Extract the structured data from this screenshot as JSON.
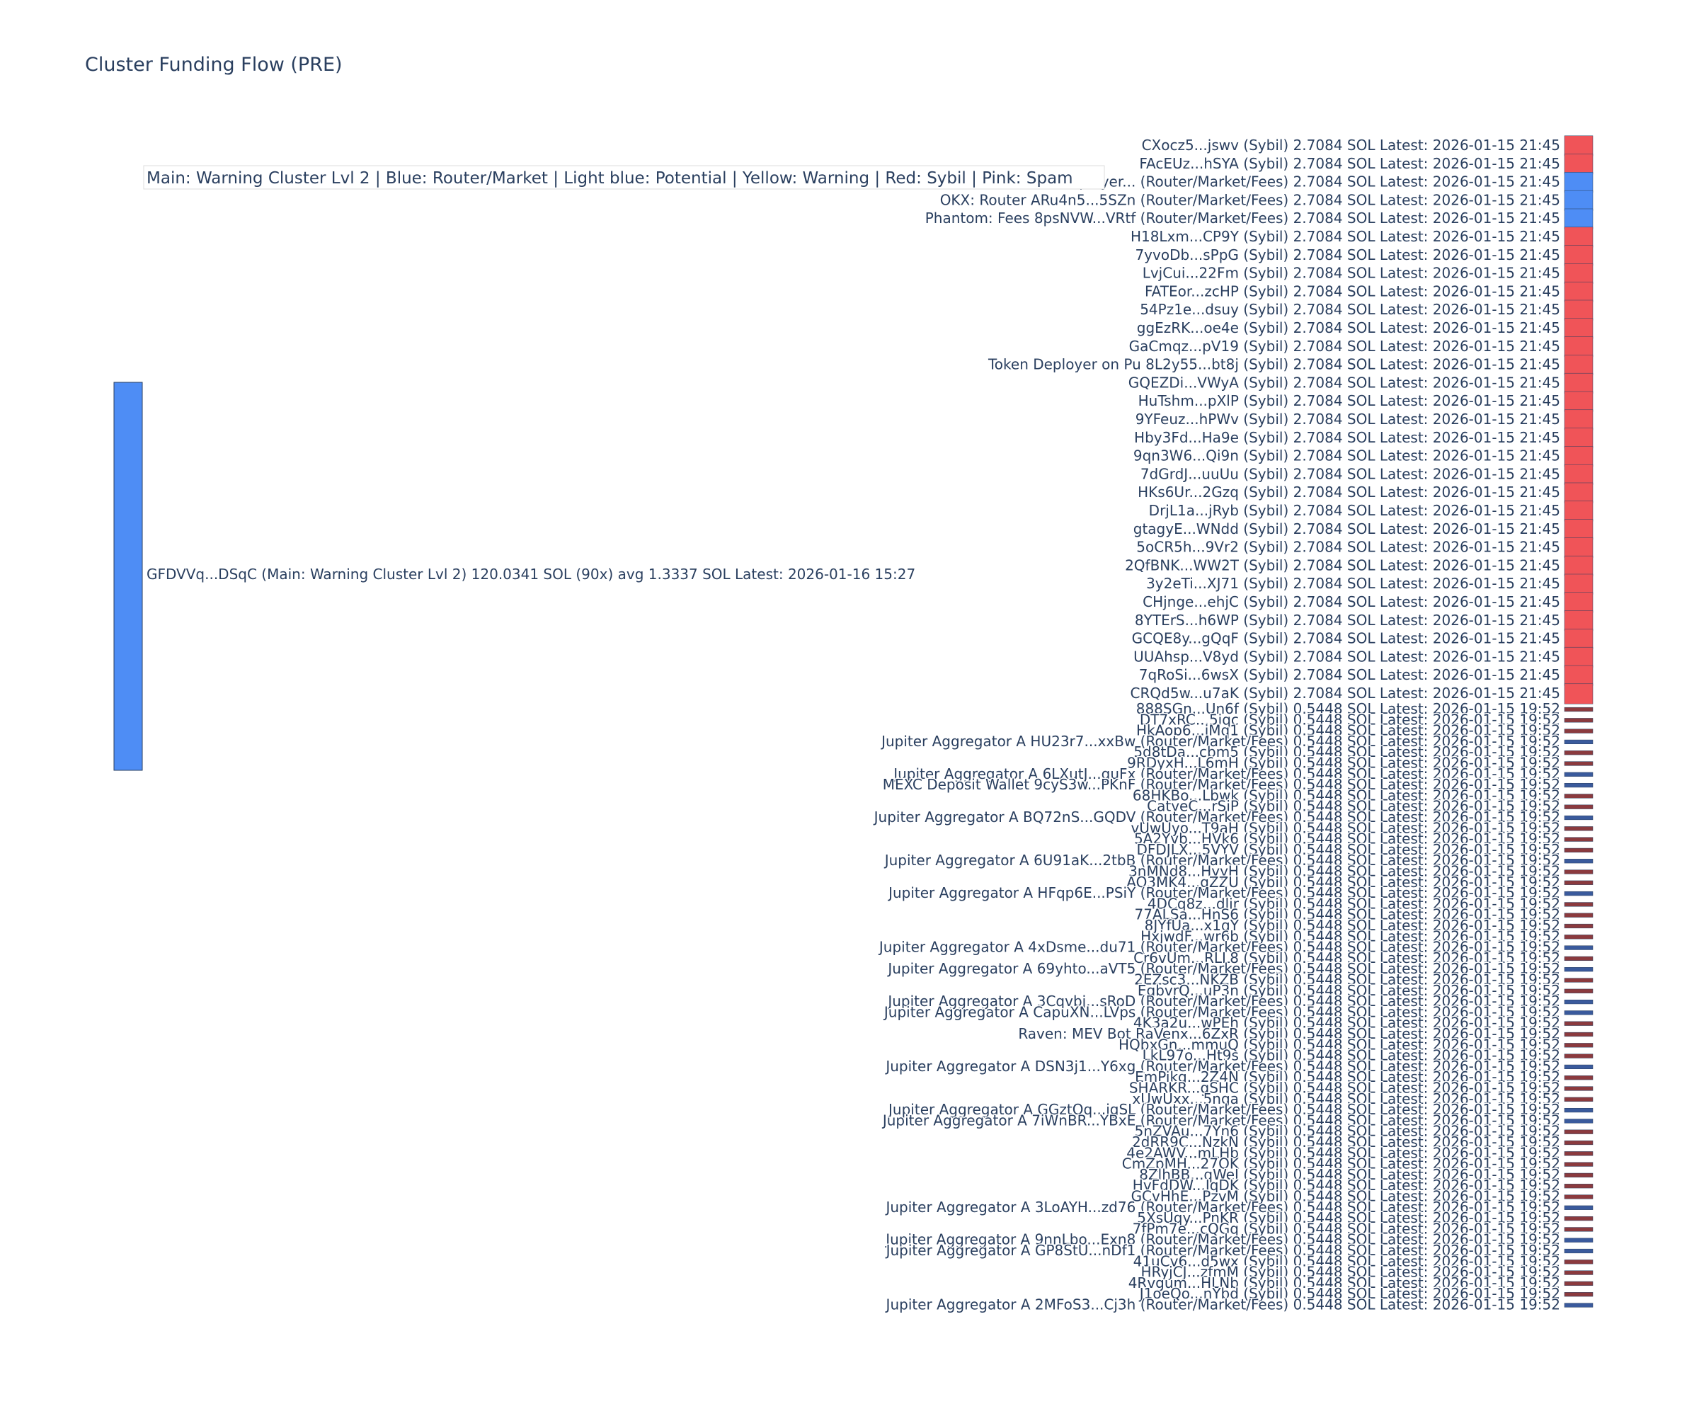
{
  "title": "Cluster Funding Flow (PRE)",
  "legend_text": "Main: Warning Cluster Lvl 2  |  Blue: Router/Market | Light blue: Potential | Yellow: Warning | Red: Sybil | Pink: Spam",
  "colors": {
    "sybil_link": "#f05458",
    "router_link": "#4e8df5",
    "sybil_node_large": "#f05458",
    "router_node_large": "#4e8df5",
    "sybil_node_small": "#8b3a3e",
    "router_node_small": "#3a5a9c",
    "source_node": "#4e8df5",
    "source_node_border": "#2a3f5f"
  },
  "chart_data": {
    "type": "sankey",
    "title": "Cluster Funding Flow (PRE)",
    "source": {
      "label": "GFDVVq...DSqC (Main: Warning Cluster Lvl 2) 120.0341 SOL (90x) avg 1.3337 SOL Latest: 2026-01-16 15:27",
      "total_sol": 120.0341,
      "count": 90,
      "avg_sol": 1.3337
    },
    "targets": [
      {
        "label": "CXocz5...jswv (Sybil) 2.7084 SOL Latest: 2026-01-15 21:45",
        "value": 2.7084,
        "kind": "sybil"
      },
      {
        "label": "FAcEUz...hSYA (Sybil) 2.7084 SOL Latest: 2026-01-15 21:45",
        "value": 2.7084,
        "kind": "sybil"
      },
      {
        "label": "Token Deployer... (Router/Market/Fees) 2.7084 SOL Latest: 2026-01-15 21:45",
        "value": 2.7084,
        "kind": "router"
      },
      {
        "label": "OKX: Router ARu4n5...5SZn (Router/Market/Fees) 2.7084 SOL Latest: 2026-01-15 21:45",
        "value": 2.7084,
        "kind": "router"
      },
      {
        "label": "Phantom: Fees 8psNVW...VRtf (Router/Market/Fees) 2.7084 SOL Latest: 2026-01-15 21:45",
        "value": 2.7084,
        "kind": "router"
      },
      {
        "label": "H18Lxm...CP9Y (Sybil) 2.7084 SOL Latest: 2026-01-15 21:45",
        "value": 2.7084,
        "kind": "sybil"
      },
      {
        "label": "7yvoDb...sPpG (Sybil) 2.7084 SOL Latest: 2026-01-15 21:45",
        "value": 2.7084,
        "kind": "sybil"
      },
      {
        "label": "LvjCui...22Fm (Sybil) 2.7084 SOL Latest: 2026-01-15 21:45",
        "value": 2.7084,
        "kind": "sybil"
      },
      {
        "label": "FATEor...zcHP (Sybil) 2.7084 SOL Latest: 2026-01-15 21:45",
        "value": 2.7084,
        "kind": "sybil"
      },
      {
        "label": "54Pz1e...dsuy (Sybil) 2.7084 SOL Latest: 2026-01-15 21:45",
        "value": 2.7084,
        "kind": "sybil"
      },
      {
        "label": "ggEzRK...oe4e (Sybil) 2.7084 SOL Latest: 2026-01-15 21:45",
        "value": 2.7084,
        "kind": "sybil"
      },
      {
        "label": "GaCmqz...pV19 (Sybil) 2.7084 SOL Latest: 2026-01-15 21:45",
        "value": 2.7084,
        "kind": "sybil"
      },
      {
        "label": "Token Deployer on Pu 8L2y55...bt8j (Sybil) 2.7084 SOL Latest: 2026-01-15 21:45",
        "value": 2.7084,
        "kind": "sybil"
      },
      {
        "label": "GQEZDi...VWyA (Sybil) 2.7084 SOL Latest: 2026-01-15 21:45",
        "value": 2.7084,
        "kind": "sybil"
      },
      {
        "label": "HuTshm...pXlP (Sybil) 2.7084 SOL Latest: 2026-01-15 21:45",
        "value": 2.7084,
        "kind": "sybil"
      },
      {
        "label": "9YFeuz...hPWv (Sybil) 2.7084 SOL Latest: 2026-01-15 21:45",
        "value": 2.7084,
        "kind": "sybil"
      },
      {
        "label": "Hby3Fd...Ha9e (Sybil) 2.7084 SOL Latest: 2026-01-15 21:45",
        "value": 2.7084,
        "kind": "sybil"
      },
      {
        "label": "9qn3W6...Qi9n (Sybil) 2.7084 SOL Latest: 2026-01-15 21:45",
        "value": 2.7084,
        "kind": "sybil"
      },
      {
        "label": "7dGrdJ...uuUu (Sybil) 2.7084 SOL Latest: 2026-01-15 21:45",
        "value": 2.7084,
        "kind": "sybil"
      },
      {
        "label": "HKs6Ur...2Gzq (Sybil) 2.7084 SOL Latest: 2026-01-15 21:45",
        "value": 2.7084,
        "kind": "sybil"
      },
      {
        "label": "DrjL1a...jRyb (Sybil) 2.7084 SOL Latest: 2026-01-15 21:45",
        "value": 2.7084,
        "kind": "sybil"
      },
      {
        "label": "gtagyE...WNdd (Sybil) 2.7084 SOL Latest: 2026-01-15 21:45",
        "value": 2.7084,
        "kind": "sybil"
      },
      {
        "label": "5oCR5h...9Vr2 (Sybil) 2.7084 SOL Latest: 2026-01-15 21:45",
        "value": 2.7084,
        "kind": "sybil"
      },
      {
        "label": "2QfBNK...WW2T (Sybil) 2.7084 SOL Latest: 2026-01-15 21:45",
        "value": 2.7084,
        "kind": "sybil"
      },
      {
        "label": "3y2eTi...XJ71 (Sybil) 2.7084 SOL Latest: 2026-01-15 21:45",
        "value": 2.7084,
        "kind": "sybil"
      },
      {
        "label": "CHjnge...ehjC (Sybil) 2.7084 SOL Latest: 2026-01-15 21:45",
        "value": 2.7084,
        "kind": "sybil"
      },
      {
        "label": "8YTErS...h6WP (Sybil) 2.7084 SOL Latest: 2026-01-15 21:45",
        "value": 2.7084,
        "kind": "sybil"
      },
      {
        "label": "GCQE8y...gQqF (Sybil) 2.7084 SOL Latest: 2026-01-15 21:45",
        "value": 2.7084,
        "kind": "sybil"
      },
      {
        "label": "UUAhsp...V8yd (Sybil) 2.7084 SOL Latest: 2026-01-15 21:45",
        "value": 2.7084,
        "kind": "sybil"
      },
      {
        "label": "7qRoSi...6wsX (Sybil) 2.7084 SOL Latest: 2026-01-15 21:45",
        "value": 2.7084,
        "kind": "sybil"
      },
      {
        "label": "CRQd5w...u7aK (Sybil) 2.7084 SOL Latest: 2026-01-15 21:45",
        "value": 2.7084,
        "kind": "sybil"
      },
      {
        "label": "888SGn...Un6f (Sybil) 0.5448 SOL Latest: 2026-01-15 19:52",
        "value": 0.5448,
        "kind": "sybil"
      },
      {
        "label": "DT7xRC...5iqc (Sybil) 0.5448 SOL Latest: 2026-01-15 19:52",
        "value": 0.5448,
        "kind": "sybil"
      },
      {
        "label": "HkAop6...jMq1 (Sybil) 0.5448 SOL Latest: 2026-01-15 19:52",
        "value": 0.5448,
        "kind": "sybil"
      },
      {
        "label": "Jupiter Aggregator A HU23r7...xxBw (Router/Market/Fees) 0.5448 SOL Latest: 2026-01-15 19:52",
        "value": 0.5448,
        "kind": "router"
      },
      {
        "label": "5d8tDa...cbm5 (Sybil) 0.5448 SOL Latest: 2026-01-15 19:52",
        "value": 0.5448,
        "kind": "sybil"
      },
      {
        "label": "9RDyxH...L6mH (Sybil) 0.5448 SOL Latest: 2026-01-15 19:52",
        "value": 0.5448,
        "kind": "sybil"
      },
      {
        "label": "Jupiter Aggregator A 6LXutJ...guFx (Router/Market/Fees) 0.5448 SOL Latest: 2026-01-15 19:52",
        "value": 0.5448,
        "kind": "router"
      },
      {
        "label": "MEXC Deposit Wallet 9cyS3w...PKnF (Router/Market/Fees) 0.5448 SOL Latest: 2026-01-15 19:52",
        "value": 0.5448,
        "kind": "router"
      },
      {
        "label": "68HKBo...Lbwk (Sybil) 0.5448 SOL Latest: 2026-01-15 19:52",
        "value": 0.5448,
        "kind": "sybil"
      },
      {
        "label": "CatyeC...rSiP (Sybil) 0.5448 SOL Latest: 2026-01-15 19:52",
        "value": 0.5448,
        "kind": "sybil"
      },
      {
        "label": "Jupiter Aggregator A BQ72nS...GQDV (Router/Market/Fees) 0.5448 SOL Latest: 2026-01-15 19:52",
        "value": 0.5448,
        "kind": "router"
      },
      {
        "label": "vUwUyo...T9aH (Sybil) 0.5448 SOL Latest: 2026-01-15 19:52",
        "value": 0.5448,
        "kind": "sybil"
      },
      {
        "label": "5A2Yvb...HVk6 (Sybil) 0.5448 SOL Latest: 2026-01-15 19:52",
        "value": 0.5448,
        "kind": "sybil"
      },
      {
        "label": "DFDJLX...5VYV (Sybil) 0.5448 SOL Latest: 2026-01-15 19:52",
        "value": 0.5448,
        "kind": "sybil"
      },
      {
        "label": "Jupiter Aggregator A 6U91aK...2tbB (Router/Market/Fees) 0.5448 SOL Latest: 2026-01-15 19:52",
        "value": 0.5448,
        "kind": "router"
      },
      {
        "label": "3nMNd8...HyyH (Sybil) 0.5448 SOL Latest: 2026-01-15 19:52",
        "value": 0.5448,
        "kind": "sybil"
      },
      {
        "label": "AQ3MK4...gZZU (Sybil) 0.5448 SOL Latest: 2026-01-15 19:52",
        "value": 0.5448,
        "kind": "sybil"
      },
      {
        "label": "Jupiter Aggregator A HFqp6E...PSiY (Router/Market/Fees) 0.5448 SOL Latest: 2026-01-15 19:52",
        "value": 0.5448,
        "kind": "router"
      },
      {
        "label": "4DCq8z...dlir (Sybil) 0.5448 SOL Latest: 2026-01-15 19:52",
        "value": 0.5448,
        "kind": "sybil"
      },
      {
        "label": "77ALSa...HnS6 (Sybil) 0.5448 SOL Latest: 2026-01-15 19:52",
        "value": 0.5448,
        "kind": "sybil"
      },
      {
        "label": "8JYfUa...x1qY (Sybil) 0.5448 SOL Latest: 2026-01-15 19:52",
        "value": 0.5448,
        "kind": "sybil"
      },
      {
        "label": "HxjwdF...wr6b (Sybil) 0.5448 SOL Latest: 2026-01-15 19:52",
        "value": 0.5448,
        "kind": "sybil"
      },
      {
        "label": "Jupiter Aggregator A 4xDsme...du71 (Router/Market/Fees) 0.5448 SOL Latest: 2026-01-15 19:52",
        "value": 0.5448,
        "kind": "router"
      },
      {
        "label": "Cr6vUm...RLL8 (Sybil) 0.5448 SOL Latest: 2026-01-15 19:52",
        "value": 0.5448,
        "kind": "sybil"
      },
      {
        "label": "Jupiter Aggregator A 69yhto...aVT5 (Router/Market/Fees) 0.5448 SOL Latest: 2026-01-15 19:52",
        "value": 0.5448,
        "kind": "router"
      },
      {
        "label": "2EZsc3...NKZB (Sybil) 0.5448 SOL Latest: 2026-01-15 19:52",
        "value": 0.5448,
        "kind": "sybil"
      },
      {
        "label": "EgbvrQ...uP3n (Sybil) 0.5448 SOL Latest: 2026-01-15 19:52",
        "value": 0.5448,
        "kind": "sybil"
      },
      {
        "label": "Jupiter Aggregator A 3Cqvbj...sRoD (Router/Market/Fees) 0.5448 SOL Latest: 2026-01-15 19:52",
        "value": 0.5448,
        "kind": "router"
      },
      {
        "label": "Jupiter Aggregator A CapuXN...LVps (Router/Market/Fees) 0.5448 SOL Latest: 2026-01-15 19:52",
        "value": 0.5448,
        "kind": "router"
      },
      {
        "label": "4K3a2u...wPEh (Sybil) 0.5448 SOL Latest: 2026-01-15 19:52",
        "value": 0.5448,
        "kind": "sybil"
      },
      {
        "label": "Raven: MEV Bot RaVenx...6ZxR (Sybil) 0.5448 SOL Latest: 2026-01-15 19:52",
        "value": 0.5448,
        "kind": "sybil"
      },
      {
        "label": "HQbxGn...mmuQ (Sybil) 0.5448 SOL Latest: 2026-01-15 19:52",
        "value": 0.5448,
        "kind": "sybil"
      },
      {
        "label": "LkL97o...Ht9s (Sybil) 0.5448 SOL Latest: 2026-01-15 19:52",
        "value": 0.5448,
        "kind": "sybil"
      },
      {
        "label": "Jupiter Aggregator A DSN3j1...Y6xg (Router/Market/Fees) 0.5448 SOL Latest: 2026-01-15 19:52",
        "value": 0.5448,
        "kind": "router"
      },
      {
        "label": "EmPikq...2Z4N (Sybil) 0.5448 SOL Latest: 2026-01-15 19:52",
        "value": 0.5448,
        "kind": "sybil"
      },
      {
        "label": "SHARKR...gSHC (Sybil) 0.5448 SOL Latest: 2026-01-15 19:52",
        "value": 0.5448,
        "kind": "sybil"
      },
      {
        "label": "xUwUxx...5nga (Sybil) 0.5448 SOL Latest: 2026-01-15 19:52",
        "value": 0.5448,
        "kind": "sybil"
      },
      {
        "label": "Jupiter Aggregator A GGztQq...igSL (Router/Market/Fees) 0.5448 SOL Latest: 2026-01-15 19:52",
        "value": 0.5448,
        "kind": "router"
      },
      {
        "label": "Jupiter Aggregator A 7iWnBR...YBxE (Router/Market/Fees) 0.5448 SOL Latest: 2026-01-15 19:52",
        "value": 0.5448,
        "kind": "router"
      },
      {
        "label": "5nZVAu...7Yn6 (Sybil) 0.5448 SOL Latest: 2026-01-15 19:52",
        "value": 0.5448,
        "kind": "sybil"
      },
      {
        "label": "2dRR9C...NzkN (Sybil) 0.5448 SOL Latest: 2026-01-15 19:52",
        "value": 0.5448,
        "kind": "sybil"
      },
      {
        "label": "4e2AWV...mLHb (Sybil) 0.5448 SOL Latest: 2026-01-15 19:52",
        "value": 0.5448,
        "kind": "sybil"
      },
      {
        "label": "CmZpMH...27QK (Sybil) 0.5448 SOL Latest: 2026-01-15 19:52",
        "value": 0.5448,
        "kind": "sybil"
      },
      {
        "label": "8ZlhBB...qWeJ (Sybil) 0.5448 SOL Latest: 2026-01-15 19:52",
        "value": 0.5448,
        "kind": "sybil"
      },
      {
        "label": "HvFdDW...JqDK (Sybil) 0.5448 SOL Latest: 2026-01-15 19:52",
        "value": 0.5448,
        "kind": "sybil"
      },
      {
        "label": "GCvHhE...PzvM (Sybil) 0.5448 SOL Latest: 2026-01-15 19:52",
        "value": 0.5448,
        "kind": "sybil"
      },
      {
        "label": "Jupiter Aggregator A 3LoAYH...zd76 (Router/Market/Fees) 0.5448 SOL Latest: 2026-01-15 19:52",
        "value": 0.5448,
        "kind": "router"
      },
      {
        "label": "5XsUqy...PnKR (Sybil) 0.5448 SOL Latest: 2026-01-15 19:52",
        "value": 0.5448,
        "kind": "sybil"
      },
      {
        "label": "7fPm7e...cQGq (Sybil) 0.5448 SOL Latest: 2026-01-15 19:52",
        "value": 0.5448,
        "kind": "sybil"
      },
      {
        "label": "Jupiter Aggregator A 9nnLbo...Exn8 (Router/Market/Fees) 0.5448 SOL Latest: 2026-01-15 19:52",
        "value": 0.5448,
        "kind": "router"
      },
      {
        "label": "Jupiter Aggregator A GP8StU...nDf1 (Router/Market/Fees) 0.5448 SOL Latest: 2026-01-15 19:52",
        "value": 0.5448,
        "kind": "router"
      },
      {
        "label": "41uCv6...d5wx (Sybil) 0.5448 SOL Latest: 2026-01-15 19:52",
        "value": 0.5448,
        "kind": "sybil"
      },
      {
        "label": "HRyjCJ...zfmM (Sybil) 0.5448 SOL Latest: 2026-01-15 19:52",
        "value": 0.5448,
        "kind": "sybil"
      },
      {
        "label": "4Rvgum...HLNb (Sybil) 0.5448 SOL Latest: 2026-01-15 19:52",
        "value": 0.5448,
        "kind": "sybil"
      },
      {
        "label": "J1oeQo...nYbd (Sybil) 0.5448 SOL Latest: 2026-01-15 19:52",
        "value": 0.5448,
        "kind": "sybil"
      },
      {
        "label": "Jupiter Aggregator A 2MFoS3...Cj3h (Router/Market/Fees) 0.5448 SOL Latest: 2026-01-15 19:52",
        "value": 0.5448,
        "kind": "router"
      }
    ]
  }
}
